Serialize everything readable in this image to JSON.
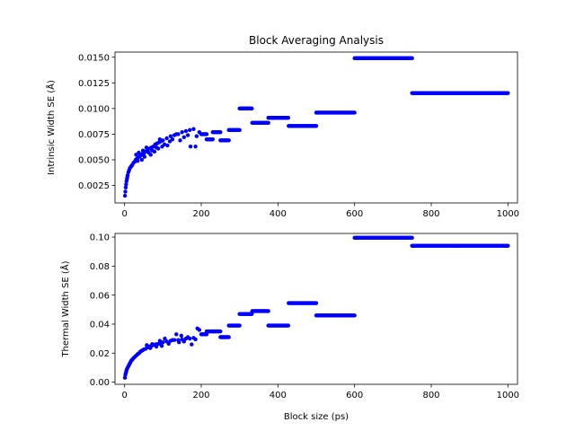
{
  "chart_data": [
    {
      "type": "scatter",
      "title": "Block Averaging Analysis",
      "xlabel": "",
      "ylabel": "Intrinsic Width SE (Å)",
      "xlim": [
        -25,
        1025
      ],
      "ylim": [
        0.0008,
        0.0155
      ],
      "xticks": [
        0,
        200,
        400,
        600,
        800,
        1000
      ],
      "xtick_labels": [
        "0",
        "200",
        "400",
        "600",
        "800",
        "1000"
      ],
      "yticks": [
        0.0025,
        0.005,
        0.0075,
        0.01,
        0.0125,
        0.015
      ],
      "ytick_labels": [
        "0.0025",
        "0.0050",
        "0.0075",
        "0.0100",
        "0.0125",
        "0.0150"
      ],
      "grid": false,
      "marker_color": "#0000ff",
      "curve_points": [
        [
          1,
          0.0015
        ],
        [
          2,
          0.0019
        ],
        [
          3,
          0.0023
        ],
        [
          4,
          0.0026
        ],
        [
          5,
          0.0029
        ],
        [
          6,
          0.0031
        ],
        [
          7,
          0.0033
        ],
        [
          8,
          0.0035
        ],
        [
          10,
          0.0038
        ],
        [
          12,
          0.004
        ],
        [
          14,
          0.0042
        ],
        [
          16,
          0.0043
        ],
        [
          18,
          0.0044
        ],
        [
          20,
          0.0045
        ],
        [
          23,
          0.0047
        ],
        [
          26,
          0.0048
        ],
        [
          29,
          0.005
        ],
        [
          32,
          0.0051
        ],
        [
          35,
          0.0052
        ],
        [
          38,
          0.0053
        ],
        [
          41,
          0.0054
        ],
        [
          44,
          0.0055
        ],
        [
          47,
          0.0056
        ],
        [
          50,
          0.0056
        ],
        [
          55,
          0.0058
        ],
        [
          60,
          0.006
        ],
        [
          65,
          0.0061
        ],
        [
          70,
          0.0062
        ],
        [
          75,
          0.0063
        ],
        [
          80,
          0.0065
        ],
        [
          85,
          0.0066
        ],
        [
          90,
          0.0067
        ],
        [
          95,
          0.0068
        ],
        [
          100,
          0.0069
        ],
        [
          110,
          0.0071
        ],
        [
          120,
          0.0073
        ],
        [
          130,
          0.0074
        ],
        [
          140,
          0.0075
        ],
        [
          150,
          0.0077
        ],
        [
          160,
          0.0078
        ],
        [
          170,
          0.0079
        ],
        [
          180,
          0.008
        ]
      ],
      "scatter_extra": [
        [
          30,
          0.0055
        ],
        [
          34,
          0.0049
        ],
        [
          37,
          0.0057
        ],
        [
          45,
          0.005
        ],
        [
          48,
          0.0059
        ],
        [
          52,
          0.0053
        ],
        [
          57,
          0.0062
        ],
        [
          63,
          0.0057
        ],
        [
          68,
          0.0055
        ],
        [
          72,
          0.0059
        ],
        [
          78,
          0.0058
        ],
        [
          83,
          0.0062
        ],
        [
          88,
          0.0061
        ],
        [
          92,
          0.007
        ],
        [
          98,
          0.0063
        ],
        [
          104,
          0.0065
        ],
        [
          112,
          0.0064
        ],
        [
          118,
          0.0068
        ],
        [
          125,
          0.007
        ],
        [
          135,
          0.0075
        ],
        [
          145,
          0.0069
        ],
        [
          155,
          0.0072
        ],
        [
          165,
          0.0074
        ],
        [
          172,
          0.0063
        ],
        [
          185,
          0.0063
        ],
        [
          188,
          0.0073
        ],
        [
          195,
          0.0077
        ]
      ],
      "steps": [
        {
          "x_start": 200,
          "x_end": 214,
          "y": 0.0075
        },
        {
          "x_start": 214,
          "x_end": 230,
          "y": 0.007
        },
        {
          "x_start": 230,
          "x_end": 250,
          "y": 0.0077
        },
        {
          "x_start": 250,
          "x_end": 272,
          "y": 0.0069
        },
        {
          "x_start": 272,
          "x_end": 300,
          "y": 0.0079
        },
        {
          "x_start": 300,
          "x_end": 333,
          "y": 0.01
        },
        {
          "x_start": 333,
          "x_end": 375,
          "y": 0.0086
        },
        {
          "x_start": 375,
          "x_end": 428,
          "y": 0.0091
        },
        {
          "x_start": 428,
          "x_end": 500,
          "y": 0.0083
        },
        {
          "x_start": 500,
          "x_end": 600,
          "y": 0.0096
        },
        {
          "x_start": 600,
          "x_end": 750,
          "y": 0.0149
        },
        {
          "x_start": 750,
          "x_end": 1000,
          "y": 0.0115
        }
      ]
    },
    {
      "type": "scatter",
      "title": "",
      "xlabel": "Block size (ps)",
      "ylabel": "Thermal Width SE (Å)",
      "xlim": [
        -25,
        1025
      ],
      "ylim": [
        -0.0015,
        0.1025
      ],
      "xticks": [
        0,
        200,
        400,
        600,
        800,
        1000
      ],
      "xtick_labels": [
        "0",
        "200",
        "400",
        "600",
        "800",
        "1000"
      ],
      "yticks": [
        0.0,
        0.02,
        0.04,
        0.06,
        0.08,
        0.1
      ],
      "ytick_labels": [
        "0.00",
        "0.02",
        "0.04",
        "0.06",
        "0.08",
        "0.10"
      ],
      "grid": false,
      "marker_color": "#0000ff",
      "curve_points": [
        [
          1,
          0.003
        ],
        [
          2,
          0.005
        ],
        [
          3,
          0.006
        ],
        [
          4,
          0.007
        ],
        [
          5,
          0.008
        ],
        [
          6,
          0.009
        ],
        [
          8,
          0.01
        ],
        [
          10,
          0.011
        ],
        [
          12,
          0.012
        ],
        [
          14,
          0.013
        ],
        [
          16,
          0.014
        ],
        [
          18,
          0.015
        ],
        [
          20,
          0.0155
        ],
        [
          23,
          0.0165
        ],
        [
          26,
          0.0172
        ],
        [
          29,
          0.018
        ],
        [
          32,
          0.0187
        ],
        [
          35,
          0.0195
        ],
        [
          38,
          0.02
        ],
        [
          41,
          0.021
        ],
        [
          44,
          0.0215
        ],
        [
          47,
          0.022
        ],
        [
          50,
          0.0225
        ],
        [
          55,
          0.023
        ],
        [
          60,
          0.024
        ],
        [
          65,
          0.0245
        ],
        [
          70,
          0.025
        ],
        [
          75,
          0.0255
        ],
        [
          80,
          0.026
        ],
        [
          85,
          0.0262
        ],
        [
          90,
          0.0265
        ],
        [
          95,
          0.027
        ],
        [
          100,
          0.0275
        ],
        [
          110,
          0.028
        ],
        [
          120,
          0.0285
        ],
        [
          130,
          0.029
        ],
        [
          140,
          0.029
        ],
        [
          150,
          0.0295
        ],
        [
          160,
          0.03
        ],
        [
          170,
          0.03
        ],
        [
          180,
          0.0305
        ]
      ],
      "scatter_extra": [
        [
          58,
          0.0255
        ],
        [
          67,
          0.0235
        ],
        [
          72,
          0.0262
        ],
        [
          83,
          0.0245
        ],
        [
          92,
          0.0285
        ],
        [
          97,
          0.025
        ],
        [
          105,
          0.03
        ],
        [
          115,
          0.0265
        ],
        [
          125,
          0.029
        ],
        [
          135,
          0.033
        ],
        [
          142,
          0.0275
        ],
        [
          148,
          0.032
        ],
        [
          155,
          0.028
        ],
        [
          165,
          0.031
        ],
        [
          175,
          0.026
        ],
        [
          185,
          0.0295
        ],
        [
          190,
          0.037
        ],
        [
          195,
          0.036
        ]
      ],
      "steps": [
        {
          "x_start": 200,
          "x_end": 214,
          "y": 0.033
        },
        {
          "x_start": 214,
          "x_end": 250,
          "y": 0.035
        },
        {
          "x_start": 250,
          "x_end": 272,
          "y": 0.031
        },
        {
          "x_start": 272,
          "x_end": 300,
          "y": 0.039
        },
        {
          "x_start": 300,
          "x_end": 333,
          "y": 0.047
        },
        {
          "x_start": 333,
          "x_end": 375,
          "y": 0.049
        },
        {
          "x_start": 375,
          "x_end": 428,
          "y": 0.039
        },
        {
          "x_start": 428,
          "x_end": 500,
          "y": 0.0545
        },
        {
          "x_start": 500,
          "x_end": 600,
          "y": 0.046
        },
        {
          "x_start": 600,
          "x_end": 750,
          "y": 0.0995
        },
        {
          "x_start": 750,
          "x_end": 1000,
          "y": 0.094
        }
      ]
    }
  ]
}
